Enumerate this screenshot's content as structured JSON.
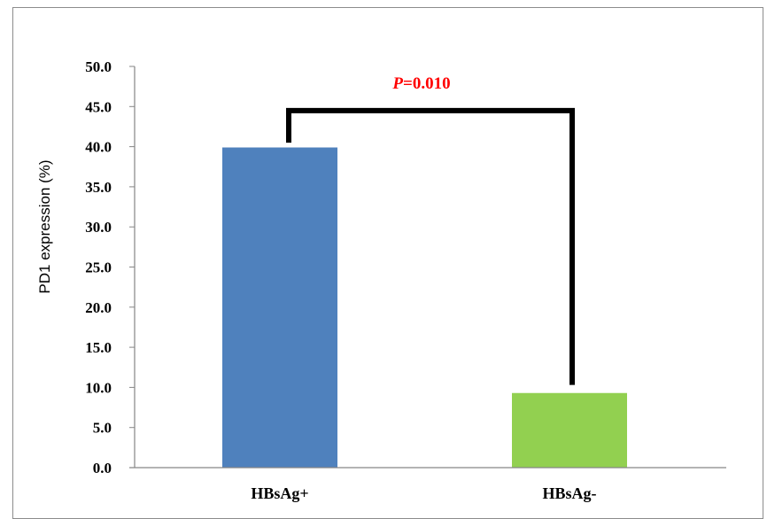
{
  "chart_data": {
    "type": "bar",
    "categories": [
      "HBsAg+",
      "HBsAg-"
    ],
    "values": [
      39.9,
      9.3
    ],
    "colors": [
      "#4f81bd",
      "#92d050"
    ],
    "ylabel": "PD1 expression (%)",
    "xlabel": "",
    "ylim": [
      0,
      50
    ],
    "yticks": [
      "0.0",
      "5.0",
      "10.0",
      "15.0",
      "20.0",
      "25.0",
      "30.0",
      "35.0",
      "40.0",
      "45.0",
      "50.0"
    ],
    "grid": false,
    "legend": "none",
    "annotation": {
      "text_italic": "P",
      "text_rest": "=0.010",
      "color": "#ff0000",
      "bracket_level": 44.5,
      "bracket_ends": [
        40.5,
        10.3
      ],
      "bracket_color": "#000000"
    }
  }
}
